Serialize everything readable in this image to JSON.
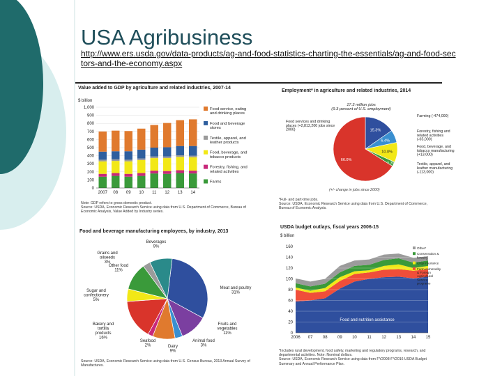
{
  "slide": {
    "title": "USA Agribusiness",
    "url": "http://www.ers.usda.gov/data-products/ag-and-food-statistics-charting-the-essentials/ag-and-food-sectors-and-the-economy.aspx"
  },
  "colors": {
    "teal_dark": "#1f6b6b",
    "teal_light": "#d8eeee",
    "rule": "#222222"
  },
  "chart_data": [
    {
      "type": "bar",
      "title": "Value added to GDP by agriculture and related industries, 2007-14",
      "ylabel": "$ billion",
      "ylim": [
        0,
        1000
      ],
      "yticks": [
        "0",
        "100",
        "200",
        "300",
        "400",
        "500",
        "600",
        "700",
        "800",
        "900",
        "1,000"
      ],
      "categories": [
        "2007",
        "08",
        "09",
        "10",
        "11",
        "12",
        "13",
        "14"
      ],
      "series": [
        {
          "name": "Farms",
          "color": "#3a9a3a",
          "values": [
            140,
            150,
            140,
            150,
            180,
            175,
            185,
            180
          ]
        },
        {
          "name": "Forestry, fishing, and related activities",
          "color": "#c8287a",
          "values": [
            35,
            35,
            35,
            35,
            35,
            35,
            35,
            35
          ]
        },
        {
          "name": "Food, beverage, and tobacco products",
          "color": "#f2e817",
          "values": [
            155,
            150,
            155,
            160,
            155,
            160,
            165,
            165
          ]
        },
        {
          "name": "Textile, apparel, and leather products",
          "color": "#9b9b9b",
          "values": [
            20,
            20,
            20,
            20,
            20,
            20,
            20,
            20
          ]
        },
        {
          "name": "Food and beverage stores",
          "color": "#2f5f9e",
          "values": [
            100,
            100,
            105,
            110,
            110,
            115,
            115,
            120
          ]
        },
        {
          "name": "Food service, eating and drinking places",
          "color": "#e07a2e",
          "values": [
            250,
            255,
            250,
            260,
            280,
            300,
            320,
            330
          ]
        }
      ],
      "legend": [
        "Food service, eating and drinking places",
        "Food and beverage stores",
        "Textile, apparel, and leather products",
        "Food, beverage, and tobacco products",
        "Forestry, fishing, and related activities",
        "Farms"
      ],
      "note": "Note: GDP refers to gross domestic product.",
      "source": "Source: USDA, Economic Research Service using data from U.S. Department of Commerce, Bureau of Economic Analysis, Value Added by Industry series."
    },
    {
      "type": "pie",
      "title": "Employment* in agriculture and related industries, 2014",
      "center_line1": "17.3 million jobs",
      "center_line2": "(9.3 percent of U.S. employment)",
      "slices": [
        {
          "label": "Farming (-474,000)",
          "value": 15.3,
          "pct": "15.3%",
          "color": "#2f4f9e"
        },
        {
          "label": "Forestry, fishing and related activities (-65,000)",
          "value": 6.4,
          "pct": "6.4%",
          "color": "#3a8fd0"
        },
        {
          "label": "Food, beverage, and tobacco manufacturing (+13,000)",
          "value": 10.0,
          "pct": "10.0%",
          "color": "#f2e817"
        },
        {
          "label": "Textile, apparel, and leather manufacturing (-113,000)",
          "value": 2.3,
          "pct": "2.3%",
          "color": "#3a9a3a"
        },
        {
          "label": "Food services and drinking places (+2,812,200 jobs since 2000)",
          "value": 66.0,
          "pct": "66.0%",
          "color": "#d9342b"
        }
      ],
      "footnote": "(+/- change in jobs since 2000)",
      "note": "*Full- and part-time jobs.",
      "source": "Source: USDA, Economic Research Service using data from U.S. Department of Commerce, Bureau of Economic Analysis."
    },
    {
      "type": "pie",
      "title": "Food and beverage manufacturing employees, by industry, 2013",
      "slices": [
        {
          "label": "Meat and poultry",
          "pct": "31%",
          "value": 31,
          "color": "#2f4f9e"
        },
        {
          "label": "Fruits and vegetables",
          "pct": "11%",
          "value": 11,
          "color": "#7b3fa0"
        },
        {
          "label": "Animal food",
          "pct": "3%",
          "value": 3,
          "color": "#3a8fd0"
        },
        {
          "label": "Dairy",
          "pct": "9%",
          "value": 9,
          "color": "#e07a2e"
        },
        {
          "label": "Seafood",
          "pct": "2%",
          "value": 2,
          "color": "#c8287a"
        },
        {
          "label": "Bakery and tortilla products",
          "pct": "16%",
          "value": 16,
          "color": "#d9342b"
        },
        {
          "label": "Sugar and confectionery",
          "pct": "5%",
          "value": 5,
          "color": "#f2e817"
        },
        {
          "label": "Other food",
          "pct": "11%",
          "value": 11,
          "color": "#3a9a3a"
        },
        {
          "label": "Grains and oilseeds",
          "pct": "3%",
          "value": 3,
          "color": "#9b9b9b"
        },
        {
          "label": "Beverages",
          "pct": "9%",
          "value": 9,
          "color": "#2a8a8a"
        }
      ],
      "source": "Source: USDA, Economic Research Service using data from U.S. Census Bureau, 2013 Annual Survey of Manufactures."
    },
    {
      "type": "area",
      "title": "USDA budget outlays, fiscal years 2006-15",
      "ylabel": "$ billion",
      "ylim": [
        0,
        160
      ],
      "yticks": [
        "0",
        "20",
        "40",
        "60",
        "80",
        "100",
        "120",
        "140",
        "160"
      ],
      "x": [
        "2006",
        "07",
        "08",
        "09",
        "10",
        "11",
        "12",
        "13",
        "14",
        "15"
      ],
      "series": [
        {
          "name": "Food and nutrition assistance",
          "color": "#2f4f9e",
          "values": [
            58,
            60,
            64,
            82,
            95,
            100,
            103,
            104,
            101,
            104
          ]
        },
        {
          "name": "Farm commodity & Foreign Agricultural Service programs",
          "color": "#f04e3a",
          "values": [
            22,
            14,
            13,
            14,
            14,
            12,
            14,
            14,
            14,
            14
          ]
        },
        {
          "name": "Crop insurance",
          "color": "#f2e817",
          "values": [
            4,
            4,
            6,
            7,
            5,
            4,
            7,
            9,
            5,
            6
          ]
        },
        {
          "name": "Conservation & forestry",
          "color": "#3a9a3a",
          "values": [
            8,
            8,
            8,
            9,
            10,
            10,
            11,
            11,
            10,
            10
          ]
        },
        {
          "name": "Other*",
          "color": "#9b9b9b",
          "values": [
            9,
            9,
            9,
            12,
            10,
            10,
            10,
            9,
            9,
            8
          ]
        }
      ],
      "legend": [
        "Other*",
        "Conservation & forestry",
        "Crop insurance",
        "Farm commodity & Foreign Agricultural Service programs"
      ],
      "area_label": "Food and nutrition assistance",
      "note": "*Includes rural development, food safety, marketing and regulatory programs, research, and departmental activities. Note: Nominal dollars.",
      "source": "Source: USDA, Economic Research Service using data from FY2008-FY2016 USDA Budget Summary and Annual Performance Plan."
    }
  ]
}
